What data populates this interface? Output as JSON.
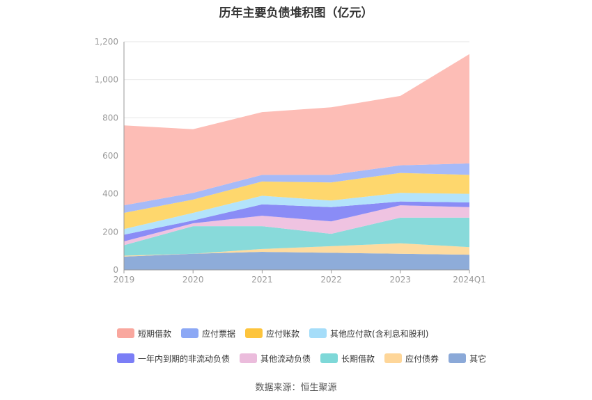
{
  "chart_data": {
    "type": "area",
    "stacked": true,
    "title": "历年主要负债堆积图（亿元）",
    "categories": [
      "2019",
      "2020",
      "2021",
      "2022",
      "2023",
      "2024Q1"
    ],
    "ylim": [
      0,
      1200
    ],
    "yticks": [
      0,
      200,
      400,
      600,
      800,
      1000,
      1200
    ],
    "ytick_labels": [
      "0",
      "200",
      "400",
      "600",
      "800",
      "1,000",
      "1,200"
    ],
    "grid": true,
    "legend_position": "bottom",
    "series": [
      {
        "name": "其它",
        "color": "#8eacd9",
        "values": [
          70,
          85,
          95,
          90,
          85,
          80
        ]
      },
      {
        "name": "应付债券",
        "color": "#fedb9f",
        "values": [
          5,
          0,
          15,
          35,
          55,
          40
        ]
      },
      {
        "name": "长期借款",
        "color": "#88dada",
        "values": [
          55,
          145,
          120,
          65,
          135,
          155
        ]
      },
      {
        "name": "其他流动负债",
        "color": "#efc3e1",
        "values": [
          20,
          15,
          55,
          65,
          65,
          55
        ]
      },
      {
        "name": "一年内到期的非流动负债",
        "color": "#8a8cf6",
        "values": [
          35,
          15,
          60,
          75,
          20,
          25
        ]
      },
      {
        "name": "其他应付款(含利息和股利)",
        "color": "#b3e3fb",
        "values": [
          30,
          40,
          45,
          35,
          45,
          45
        ]
      },
      {
        "name": "应付账款",
        "color": "#fed76d",
        "values": [
          85,
          70,
          75,
          95,
          105,
          100
        ]
      },
      {
        "name": "应付票据",
        "color": "#a6baf8",
        "values": [
          40,
          35,
          35,
          40,
          40,
          60
        ]
      },
      {
        "name": "短期借款",
        "color": "#fdbdb6",
        "values": [
          420,
          335,
          330,
          355,
          365,
          575
        ]
      }
    ]
  },
  "legend": [
    {
      "label": "短期借款",
      "color": "#f9a79e"
    },
    {
      "label": "应付票据",
      "color": "#8ca8f5"
    },
    {
      "label": "应付账款",
      "color": "#fdc43c"
    },
    {
      "label": "其他应付款(含利息和股利)",
      "color": "#a5ddf9"
    },
    {
      "label": "一年内到期的非流动负债",
      "color": "#7b7ef6"
    },
    {
      "label": "其他流动负债",
      "color": "#ebbcdc"
    },
    {
      "label": "长期借款",
      "color": "#7ed8d8"
    },
    {
      "label": "应付债券",
      "color": "#fed699"
    },
    {
      "label": "其它",
      "color": "#8ba9d8"
    }
  ],
  "source": "数据来源：恒生聚源"
}
